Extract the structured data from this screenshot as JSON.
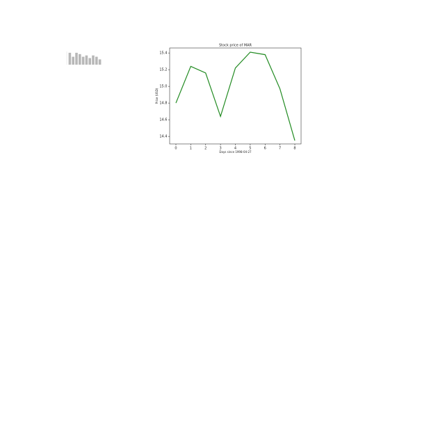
{
  "chart_data": [
    {
      "type": "line",
      "title": "Stock price of MAR",
      "x_label": "Days since 1998-04-27",
      "y_label": "Price (USD)",
      "x": [
        0,
        1,
        2,
        3,
        4,
        5,
        6,
        7,
        8
      ],
      "series": [
        {
          "color": "#228b22",
          "values": [
            14.8,
            15.24,
            15.16,
            14.64,
            15.22,
            15.41,
            15.38,
            14.97,
            14.35
          ]
        }
      ],
      "xlim": [
        -0.42,
        8.42
      ],
      "xticks": [
        0,
        1,
        2,
        3,
        4,
        5,
        6,
        7,
        8
      ],
      "ylim": [
        14.31,
        15.46
      ],
      "yticks": [
        14.4,
        14.6,
        14.8,
        {
          "value": 15.0,
          "label": "15.0"
        },
        15.2,
        15.4
      ]
    },
    {
      "type": "bar",
      "color": "#b8b8b8",
      "values": [
        9,
        6,
        9,
        8,
        6,
        7,
        5,
        7,
        6,
        4
      ],
      "ylim": [
        0,
        10
      ]
    }
  ]
}
